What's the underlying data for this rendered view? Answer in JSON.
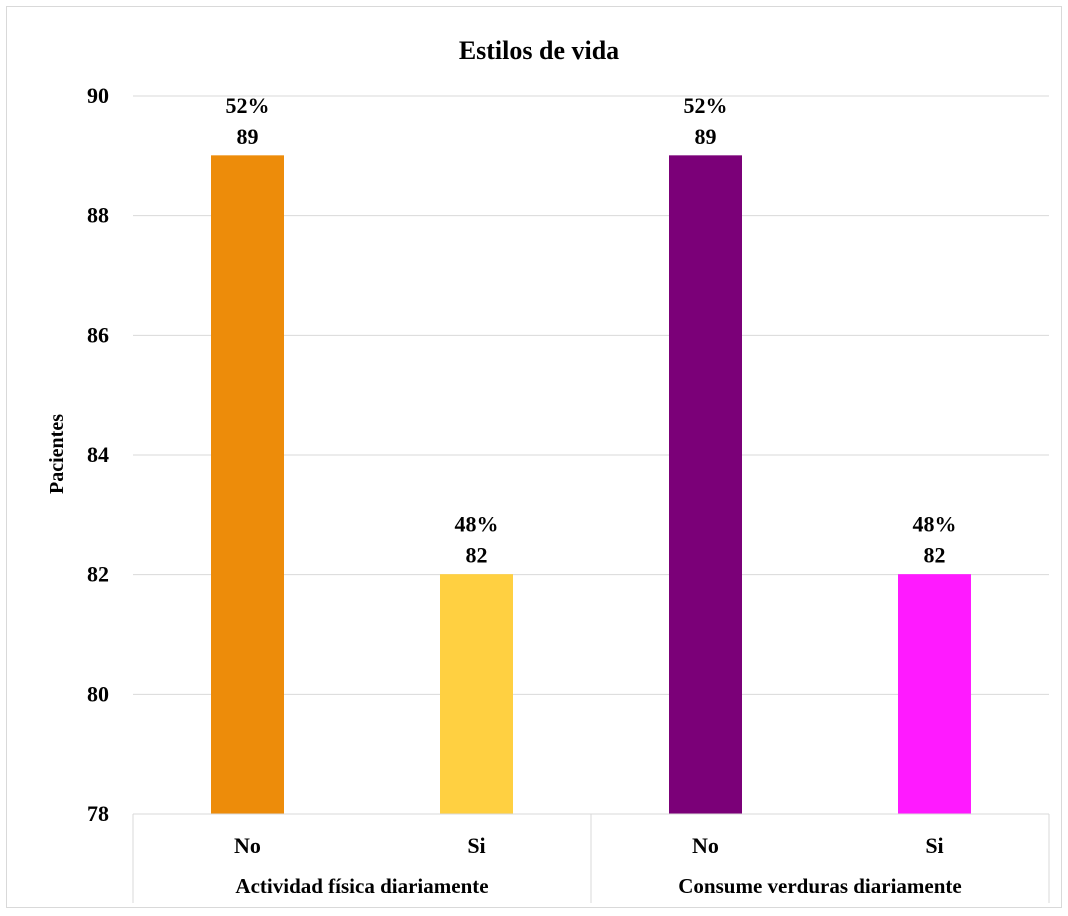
{
  "chart_data": {
    "type": "bar",
    "title": "Estilos de vida",
    "ylabel": "Pacientes",
    "ylim": [
      78,
      90
    ],
    "yticks": [
      78,
      80,
      82,
      84,
      86,
      88,
      90
    ],
    "grid": true,
    "groups": [
      {
        "label": "Actividad física diariamente",
        "bars": [
          {
            "category": "No",
            "value": 89,
            "percent": "52%",
            "color": "#ED8C0A"
          },
          {
            "category": "Si",
            "value": 82,
            "percent": "48%",
            "color": "#FFD041"
          }
        ]
      },
      {
        "label": "Consume verduras diariamente",
        "bars": [
          {
            "category": "No",
            "value": 89,
            "percent": "52%",
            "color": "#7B0078"
          },
          {
            "category": "Si",
            "value": 82,
            "percent": "48%",
            "color": "#FF1AFF"
          }
        ]
      }
    ]
  }
}
